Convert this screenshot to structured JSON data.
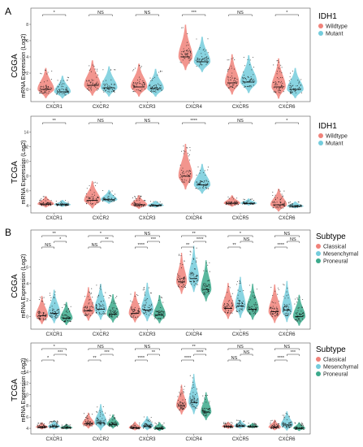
{
  "panel_labels": [
    "A",
    "B"
  ],
  "chart_data": [
    {
      "type": "violin",
      "dataset": "CGGA",
      "ylabel": "mRNA Expression (Log2)",
      "yticks": [
        0,
        2,
        4,
        6,
        8
      ],
      "ylim": [
        -1.5,
        8.5
      ],
      "categories": [
        "CXCR1",
        "CXCR2",
        "CXCR3",
        "CXCR4",
        "CXCR5",
        "CXCR6"
      ],
      "legend_title": "IDH1",
      "series": [
        {
          "name": "Wildtype",
          "color": "#F0827A",
          "medians": [
            0.0,
            0.5,
            0.3,
            4.0,
            0.8,
            0.3
          ],
          "spread": [
            1.2,
            1.4,
            1.3,
            1.8,
            1.6,
            1.6
          ]
        },
        {
          "name": "Mutant",
          "color": "#74CCDC",
          "medians": [
            -0.3,
            0.2,
            0.1,
            3.4,
            0.9,
            0.0
          ],
          "spread": [
            0.9,
            1.2,
            1.1,
            1.4,
            1.5,
            1.2
          ]
        }
      ],
      "significance": [
        {
          "label": "*",
          "levels": [
            0
          ]
        },
        {
          "label": "NS",
          "levels": [
            0
          ]
        },
        {
          "label": "NS",
          "levels": [
            0
          ]
        },
        {
          "label": "***",
          "levels": [
            0
          ]
        },
        {
          "label": "NS",
          "levels": [
            0
          ]
        },
        {
          "label": "*",
          "levels": [
            0
          ]
        }
      ]
    },
    {
      "type": "violin",
      "dataset": "TCGA",
      "ylabel": "mRNA Expression (Log2)",
      "yticks": [
        4,
        6,
        8,
        10,
        12,
        14
      ],
      "ylim": [
        3.0,
        14.5
      ],
      "categories": [
        "CXCR1",
        "CXCR2",
        "CXCR3",
        "CXCR4",
        "CXCR5",
        "CXCR6"
      ],
      "legend_title": "IDH1",
      "series": [
        {
          "name": "Wildtype",
          "color": "#F0827A",
          "medians": [
            4.2,
            4.7,
            4.1,
            8.0,
            4.3,
            4.1
          ],
          "spread": [
            0.5,
            1.2,
            0.6,
            2.0,
            0.5,
            1.0
          ]
        },
        {
          "name": "Mutant",
          "color": "#74CCDC",
          "medians": [
            4.1,
            4.8,
            4.0,
            6.8,
            4.3,
            3.9
          ],
          "spread": [
            0.3,
            0.6,
            0.3,
            1.3,
            0.3,
            0.3
          ]
        }
      ],
      "significance": [
        {
          "label": "**",
          "levels": [
            0
          ]
        },
        {
          "label": "NS",
          "levels": [
            0
          ]
        },
        {
          "label": "NS",
          "levels": [
            0
          ]
        },
        {
          "label": "****",
          "levels": [
            0
          ]
        },
        {
          "label": "NS",
          "levels": [
            0
          ]
        },
        {
          "label": "*",
          "levels": [
            0
          ]
        }
      ]
    },
    {
      "type": "violin",
      "dataset": "CGGA",
      "ylabel": "mRNA Expression (Log2)",
      "yticks": [
        0,
        2,
        4,
        6
      ],
      "ylim": [
        -1.5,
        9.0
      ],
      "categories": [
        "CXCR1",
        "CXCR2",
        "CXCR3",
        "CXCR4",
        "CXCR5",
        "CXCR6"
      ],
      "legend_title": "Subtype",
      "series": [
        {
          "name": "Classical",
          "color": "#F0827A",
          "medians": [
            0.1,
            0.7,
            0.4,
            4.2,
            1.0,
            0.6
          ],
          "spread": [
            1.1,
            1.3,
            1.2,
            1.6,
            1.4,
            1.5
          ]
        },
        {
          "name": "Mesenchymal",
          "color": "#74CCDC",
          "medians": [
            0.4,
            0.9,
            0.8,
            4.6,
            1.3,
            0.8
          ],
          "spread": [
            1.3,
            1.4,
            1.5,
            1.8,
            1.6,
            1.6
          ]
        },
        {
          "name": "Proneural",
          "color": "#3CAA8C",
          "medians": [
            -0.2,
            0.3,
            0.2,
            3.3,
            0.9,
            0.0
          ],
          "spread": [
            0.9,
            1.1,
            1.1,
            1.6,
            1.4,
            1.2
          ]
        }
      ],
      "significance": [
        {
          "top": "**",
          "left": "NS",
          "right": "*"
        },
        {
          "top": "*",
          "left": "NS",
          "right": "**"
        },
        {
          "top": "NS",
          "left": "****",
          "right": "***"
        },
        {
          "top": "**",
          "left": "**",
          "right": "****"
        },
        {
          "top": "*",
          "left": "**",
          "right": "NS"
        },
        {
          "top": "NS",
          "left": "****",
          "right": "NS"
        }
      ]
    },
    {
      "type": "violin",
      "dataset": "TCGA",
      "ylabel": "mRNA Expression (Log2)",
      "yticks": [
        4,
        6,
        8,
        10,
        12,
        14,
        16
      ],
      "ylim": [
        3.0,
        17.0
      ],
      "categories": [
        "CXCR1",
        "CXCR2",
        "CXCR3",
        "CXCR4",
        "CXCR5",
        "CXCR6"
      ],
      "legend_title": "Subtype",
      "series": [
        {
          "name": "Classical",
          "color": "#F0827A",
          "medians": [
            4.2,
            4.8,
            4.1,
            8.0,
            4.3,
            4.2
          ],
          "spread": [
            0.4,
            0.9,
            0.5,
            1.7,
            0.4,
            0.6
          ]
        },
        {
          "name": "Mesenchymal",
          "color": "#74CCDC",
          "medians": [
            4.3,
            5.0,
            4.4,
            8.6,
            4.4,
            4.6
          ],
          "spread": [
            0.5,
            1.5,
            0.8,
            2.3,
            0.5,
            1.1
          ]
        },
        {
          "name": "Proneural",
          "color": "#3CAA8C",
          "medians": [
            4.1,
            4.7,
            4.0,
            6.9,
            4.3,
            4.0
          ],
          "spread": [
            0.3,
            0.8,
            0.5,
            1.6,
            0.3,
            0.5
          ]
        }
      ],
      "significance": [
        {
          "top": "*",
          "left": "*",
          "right": "***"
        },
        {
          "top": "NS",
          "left": "**",
          "right": "***"
        },
        {
          "top": "NS",
          "left": "****",
          "right": "**"
        },
        {
          "top": "**",
          "left": "****",
          "right": "****"
        },
        {
          "top": "NS",
          "left": "NS",
          "right": "NS"
        },
        {
          "top": "NS",
          "left": "****",
          "right": "***"
        }
      ]
    }
  ]
}
